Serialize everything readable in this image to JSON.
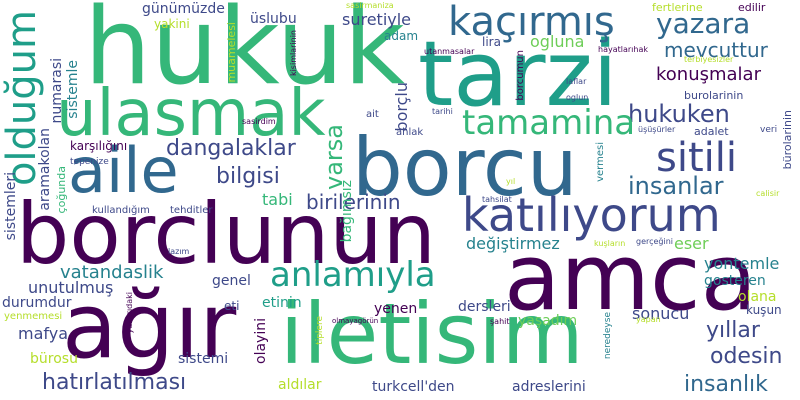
{
  "words": {
    "hukuk": "hukuk",
    "tarzi": "tarzi",
    "borcu": "borcu",
    "borclunun": "borclunun",
    "amca": "amca",
    "agir": "ağır",
    "iletisim": "iletisim",
    "ulasmak": "ulasmak",
    "aile": "aile",
    "oldugum": "olduğum",
    "kacirmis": "kaçırmış",
    "yazara": "yazara",
    "katiliyorum": "katılıyorum",
    "tamamina": "tamamina",
    "sitili": "sitili",
    "anlamiyla": "anlamıyla",
    "hukuken": "hukuken",
    "insanlar": "insanlar",
    "mevcuttur": "mevcuttur",
    "konusmalar": "konuşmalar",
    "dangalaklar": "dangalaklar",
    "bilgisi": "bilgisi",
    "birilerinin": "birilerinin",
    "varsa": "varsa",
    "hatirlatilmasi": "hatırlatılması",
    "vatandaslik": "vatandaslik",
    "gunumuzde": "günümüzde",
    "suretiyle": "suretiyle",
    "uslubu": "üslubu",
    "ogluna": "ogluna",
    "lira": "lira",
    "adam": "adam",
    "borclu": "borçlu",
    "bagimsiz": "bağımsız",
    "numarasi": "numarasi",
    "sistemle": "sistemle",
    "yakini": "yakini",
    "muamelesi": "muamelesi",
    "karsiligini": "karşılığını",
    "aramakolan": "aramakolan",
    "cogunda": "çoğunda",
    "tepenize": "tepenize",
    "sistemleri": "sistemleri",
    "kullandigim": "kullandığım",
    "tehditler": "tehditler",
    "tabi": "tabi",
    "degistirmez": "değiştirmez",
    "eser": "eser",
    "yontemle": "yontemle",
    "unutulmus": "unutulmuş",
    "genel": "genel",
    "gosteren": "gosteren",
    "olana": "olana",
    "durumdur": "durumdur",
    "yenmemesi": "yenmemesi",
    "mafya": "mafya",
    "burosu": "bürosu",
    "sistemi": "sistemi",
    "olayini": "olayini",
    "etinin": "etinin",
    "eti": "eti",
    "yenen": "yenen",
    "dersleri": "dersleri",
    "sonucu": "sonucu",
    "yillar": "yıllar",
    "odesin": "odesin",
    "insanlik": "insanlık",
    "yasadim": "yaşadım",
    "aldilar": "aldılar",
    "turkcellden": "turkcell'den",
    "adreslerini": "adreslerini",
    "kusun": "kuşun",
    "fertlerine": "fertlerine",
    "edilir": "edilir",
    "terbiyesizler": "terbiyesizler",
    "hayatlarihak": "hayatlarıhak",
    "burolarinin": "burolarinin",
    "burolarinin2": "bürolarinin",
    "adalet": "adalet",
    "veri": "veri",
    "usussurler": "üşüşürler",
    "calisir": "calisir",
    "ahlak": "ahlak",
    "tarihi": "tarihi",
    "ait": "ait",
    "laflar": "laflar",
    "oglun": "oglun",
    "borcumun": "borcumun",
    "utanmasalar": "utanmasalar",
    "sasirmaniza": "sasirmaniza",
    "kisimlarinin": "kisimlarinin",
    "sasirdim": "sasirdim",
    "vermesi": "vermesi",
    "tahsilat": "tahsilat",
    "yil": "yıl",
    "lazim": "lazım",
    "kuslarin": "kuşların",
    "gercegini": "gerçeğini",
    "olmayagorun": "olmayagörün",
    "sahit": "şahit",
    "yapan": "yapan",
    "neredeyse": "neredeyse",
    "tiplere": "tiplere",
    "yukaridaki": "yukarıdaki"
  },
  "colors": {
    "background": "#ffffff",
    "purple_dark": "#440154",
    "indigo": "#3e4989",
    "blue": "#31688e",
    "teal": "#26828e",
    "green_teal": "#1f9e89",
    "green": "#35b779",
    "light_green": "#6ece58",
    "yellow_green": "#b5de2b",
    "yellow": "#fde725"
  }
}
